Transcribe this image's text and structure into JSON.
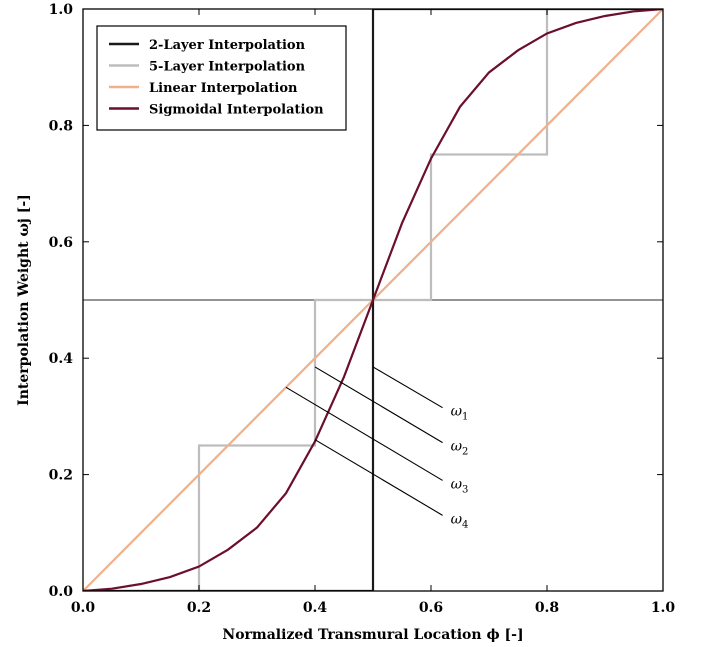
{
  "chart_data": {
    "type": "line",
    "xlabel": "Normalized Transmural Location ϕ [-]",
    "ylabel": "Interpolation Weight ωj [-]",
    "xlim": [
      0.0,
      1.0
    ],
    "ylim": [
      0.0,
      1.0
    ],
    "x_ticks": [
      "0.0",
      "0.2",
      "0.4",
      "0.6",
      "0.8",
      "1.0"
    ],
    "y_ticks": [
      "0.0",
      "0.2",
      "0.4",
      "0.6",
      "0.8",
      "1.0"
    ],
    "grid": false,
    "legend_position": "top-left",
    "series": [
      {
        "name": "2-Layer Interpolation",
        "color": "#1a1a1a",
        "x": [
          0.0,
          0.5,
          0.5,
          1.0
        ],
        "y": [
          0.0,
          0.0,
          1.0,
          1.0
        ]
      },
      {
        "name": "5-Layer Interpolation",
        "color": "#bdbdbd",
        "x": [
          0.0,
          0.2,
          0.2,
          0.4,
          0.4,
          0.6,
          0.6,
          0.8,
          0.8,
          1.0
        ],
        "y": [
          0.0,
          0.0,
          0.25,
          0.25,
          0.5,
          0.5,
          0.75,
          0.75,
          1.0,
          1.0
        ]
      },
      {
        "name": "Linear Interpolation",
        "color": "#f0b08c",
        "x": [
          0.0,
          1.0
        ],
        "y": [
          0.0,
          1.0
        ]
      },
      {
        "name": "Sigmoidal Interpolation",
        "color": "#6b0f2a",
        "x": [
          0.0,
          0.05,
          0.1,
          0.15,
          0.2,
          0.25,
          0.3,
          0.35,
          0.4,
          0.45,
          0.5,
          0.55,
          0.6,
          0.65,
          0.7,
          0.75,
          0.8,
          0.85,
          0.9,
          0.95,
          1.0
        ],
        "y": [
          0.0,
          0.004,
          0.012,
          0.024,
          0.042,
          0.071,
          0.109,
          0.168,
          0.257,
          0.368,
          0.5,
          0.632,
          0.743,
          0.832,
          0.891,
          0.929,
          0.958,
          0.976,
          0.988,
          0.996,
          1.0
        ]
      }
    ],
    "reference_line": {
      "y": 0.5,
      "color": "#555555"
    },
    "annotations": [
      {
        "label": "ω1",
        "from": [
          0.5,
          0.385
        ],
        "to": [
          0.62,
          0.315
        ]
      },
      {
        "label": "ω2",
        "from": [
          0.4,
          0.385
        ],
        "to": [
          0.62,
          0.255
        ]
      },
      {
        "label": "ω3",
        "from": [
          0.35,
          0.35
        ],
        "to": [
          0.62,
          0.19
        ]
      },
      {
        "label": "ω4",
        "from": [
          0.4,
          0.26
        ],
        "to": [
          0.62,
          0.13
        ]
      }
    ]
  }
}
